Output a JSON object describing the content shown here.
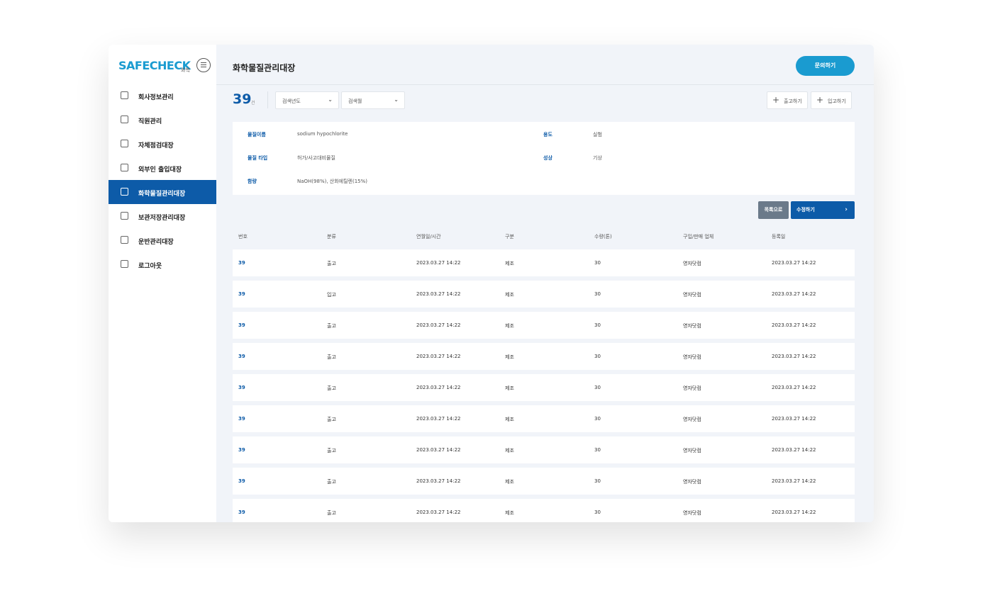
{
  "sidebar": {
    "logo": "SAFECHECK",
    "logo_sub": "화학",
    "active_item": 4,
    "items": [
      "회사정보관리",
      "직원관리",
      "자체점검대장",
      "외부인 출입대장",
      "화학물질관리대장",
      "보관저장관리대장",
      "운반관리대장",
      "로그아웃"
    ]
  },
  "header": {
    "title": "화학물질관리대장",
    "button": "문의하기"
  },
  "toolbar": {
    "count": "39",
    "count_unit": "건",
    "filters": [
      "검색년도",
      "검색월"
    ],
    "actions": [
      "출고하기",
      "입고하기"
    ]
  },
  "info": {
    "fields": [
      {
        "label": "물질이름",
        "value": "sodium hypochlorite"
      },
      {
        "label": "용도",
        "value": "실험"
      },
      {
        "label": "물질 타입",
        "value": "허가/사고대비물질"
      },
      {
        "label": "성상",
        "value": "기상"
      },
      {
        "label": "함량",
        "value": "NaOH(98%), 산화에틸렌(15%)"
      }
    ]
  },
  "buttons": {
    "list": "목록으로",
    "edit": "수정하기"
  },
  "table": {
    "headers": [
      "번호",
      "분류",
      "연월일/시간",
      "구분",
      "수량(톤)",
      "구입/판매 업체",
      "등록일"
    ],
    "rows": [
      [
        "39",
        "출고",
        "2023.03.27 14:22",
        "제조",
        "30",
        "영자닷컴",
        "2023.03.27 14:22"
      ],
      [
        "39",
        "입고",
        "2023.03.27 14:22",
        "제조",
        "30",
        "영자닷컴",
        "2023.03.27 14:22"
      ],
      [
        "39",
        "출고",
        "2023.03.27 14:22",
        "제조",
        "30",
        "영자닷컴",
        "2023.03.27 14:22"
      ],
      [
        "39",
        "출고",
        "2023.03.27 14:22",
        "제조",
        "30",
        "영자닷컴",
        "2023.03.27 14:22"
      ],
      [
        "39",
        "출고",
        "2023.03.27 14:22",
        "제조",
        "30",
        "영자닷컴",
        "2023.03.27 14:22"
      ],
      [
        "39",
        "출고",
        "2023.03.27 14:22",
        "제조",
        "30",
        "영자닷컴",
        "2023.03.27 14:22"
      ],
      [
        "39",
        "출고",
        "2023.03.27 14:22",
        "제조",
        "30",
        "영자닷컴",
        "2023.03.27 14:22"
      ],
      [
        "39",
        "출고",
        "2023.03.27 14:22",
        "제조",
        "30",
        "영자닷컴",
        "2023.03.27 14:22"
      ],
      [
        "39",
        "출고",
        "2023.03.27 14:22",
        "제조",
        "30",
        "영자닷컴",
        "2023.03.27 14:22"
      ]
    ]
  }
}
